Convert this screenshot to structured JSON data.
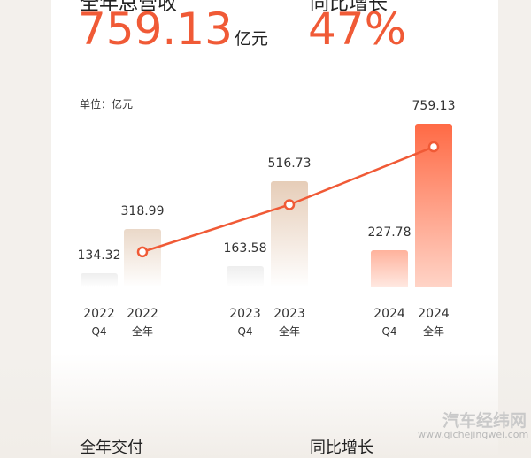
{
  "top": {
    "label1": "全年总营收",
    "value1": "759.13",
    "unit1": "亿元",
    "label2": "同比增长",
    "value2": "47%"
  },
  "chart_data": {
    "type": "bar+line",
    "unit_label": "单位：亿元",
    "categories": [
      [
        "2022",
        "Q4"
      ],
      [
        "2022",
        "全年"
      ],
      [
        "2023",
        "Q4"
      ],
      [
        "2023",
        "全年"
      ],
      [
        "2024",
        "Q4"
      ],
      [
        "2024",
        "全年"
      ]
    ],
    "values": [
      134.32,
      318.99,
      163.58,
      516.73,
      227.78,
      759.13
    ],
    "value_labels": [
      "134.32",
      "318.99",
      "163.58",
      "516.73",
      "227.78",
      "759.13"
    ],
    "line_series": "全年",
    "colors": {
      "line": "#f05a36",
      "accent": "#ff6a45"
    }
  },
  "bottom": {
    "label1": "全年交付",
    "label2": "同比增长"
  },
  "watermark": {
    "name": "汽车经纬网",
    "url": "www.qichejingwei.com"
  }
}
